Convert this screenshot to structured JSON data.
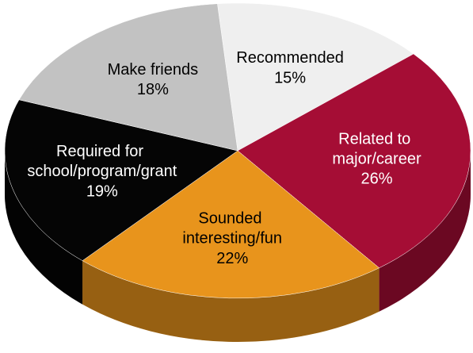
{
  "chart_data": {
    "type": "pie",
    "categories": [
      "Recommended",
      "Related to major/career",
      "Sounded interesting/fun",
      "Required for school/program/grant",
      "Make friends"
    ],
    "values": [
      15,
      26,
      22,
      19,
      18
    ],
    "value_labels": [
      "15%",
      "26%",
      "22%",
      "19%",
      "18%"
    ],
    "colors": [
      "#efefef",
      "#a50d35",
      "#e8941c",
      "#050505",
      "#c2c2c2"
    ]
  }
}
